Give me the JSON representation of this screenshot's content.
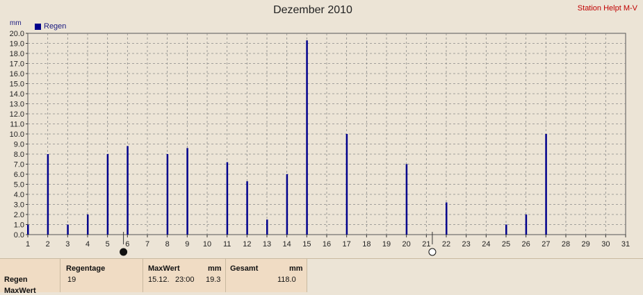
{
  "header": {
    "title": "Dezember 2010",
    "station": "Station Helpt M-V",
    "unit": "mm"
  },
  "chart_data": {
    "type": "bar",
    "title": "Dezember 2010",
    "ylabel": "mm",
    "xlabel": "",
    "ylim": [
      0,
      20
    ],
    "xlim": [
      1,
      31
    ],
    "yticks": [
      "0.0",
      "1.0",
      "2.0",
      "3.0",
      "4.0",
      "5.0",
      "6.0",
      "7.0",
      "8.0",
      "9.0",
      "10.0",
      "11.0",
      "12.0",
      "13.0",
      "14.0",
      "15.0",
      "16.0",
      "17.0",
      "18.0",
      "19.0",
      "20.0"
    ],
    "xticks": [
      "1",
      "2",
      "3",
      "4",
      "5",
      "6",
      "7",
      "8",
      "9",
      "10",
      "11",
      "12",
      "13",
      "14",
      "15",
      "16",
      "17",
      "18",
      "19",
      "20",
      "21",
      "22",
      "23",
      "24",
      "25",
      "26",
      "27",
      "28",
      "29",
      "30",
      "31"
    ],
    "grid": true,
    "legend_position": "top-left",
    "series": [
      {
        "name": "Regen",
        "color": "#00008b",
        "points": [
          {
            "x": 1,
            "y": 1.0
          },
          {
            "x": 2,
            "y": 8.0
          },
          {
            "x": 3,
            "y": 1.0
          },
          {
            "x": 4,
            "y": 2.0
          },
          {
            "x": 5,
            "y": 8.0
          },
          {
            "x": 6,
            "y": 8.8
          },
          {
            "x": 8,
            "y": 8.0
          },
          {
            "x": 9,
            "y": 8.6
          },
          {
            "x": 11,
            "y": 7.2
          },
          {
            "x": 12,
            "y": 5.3
          },
          {
            "x": 13,
            "y": 1.5
          },
          {
            "x": 14,
            "y": 6.0
          },
          {
            "x": 15,
            "y": 19.3
          },
          {
            "x": 17,
            "y": 10.0
          },
          {
            "x": 20,
            "y": 7.0
          },
          {
            "x": 22,
            "y": 3.2
          },
          {
            "x": 25,
            "y": 1.0
          },
          {
            "x": 26,
            "y": 2.0
          },
          {
            "x": 27,
            "y": 10.0
          }
        ]
      }
    ],
    "moon_phases": [
      {
        "x": 5.8,
        "phase": "new-moon"
      },
      {
        "x": 21.3,
        "phase": "full-moon"
      }
    ]
  },
  "summary": {
    "row_label": "Regen",
    "row_label_2": "MaxWert",
    "regentage_head": "Regentage",
    "regentage_value": "19",
    "maxwert_head": "MaxWert",
    "maxwert_unit": "mm",
    "maxwert_date": "15.12.",
    "maxwert_time": "23:00",
    "maxwert_value": "19.3",
    "gesamt_head": "Gesamt",
    "gesamt_unit": "mm",
    "gesamt_value": "118.0"
  }
}
